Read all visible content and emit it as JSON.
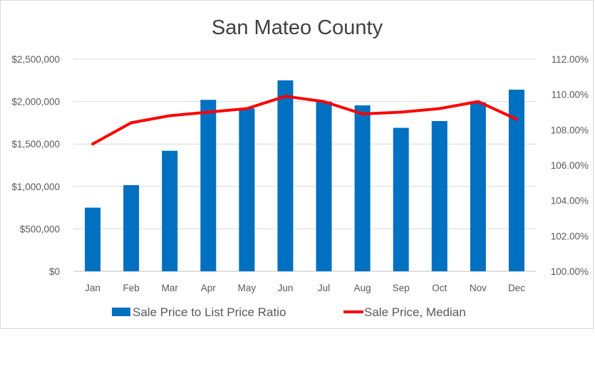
{
  "chart_data": {
    "type": "bar",
    "title": "San Mateo County",
    "categories": [
      "Jan",
      "Feb",
      "Mar",
      "Apr",
      "May",
      "Jun",
      "Jul",
      "Aug",
      "Sep",
      "Oct",
      "Nov",
      "Dec"
    ],
    "series": [
      {
        "name": "Sale Price to List Price Ratio",
        "type": "bar",
        "axis": "left",
        "color": "#0070C0",
        "values": [
          750000,
          1015000,
          1420000,
          2020000,
          1920000,
          2250000,
          2000000,
          1955000,
          1690000,
          1770000,
          1990000,
          2140000
        ]
      },
      {
        "name": "Sale Price, Median",
        "type": "line",
        "axis": "right",
        "color": "#FF0000",
        "values": [
          1.072,
          1.084,
          1.088,
          1.09,
          1.092,
          1.099,
          1.096,
          1.089,
          1.09,
          1.092,
          1.096,
          1.086
        ]
      }
    ],
    "y_left": {
      "lim": [
        0,
        2500000
      ],
      "ticks": [
        0,
        500000,
        1000000,
        1500000,
        2000000,
        2500000
      ],
      "tick_labels": [
        "$0",
        "$500,000",
        "$1,000,000",
        "$1,500,000",
        "$2,000,000",
        "$2,500,000"
      ]
    },
    "y_right": {
      "lim": [
        1.0,
        1.12
      ],
      "ticks": [
        1.0,
        1.02,
        1.04,
        1.06,
        1.08,
        1.1,
        1.12
      ],
      "tick_labels": [
        "100.00%",
        "102.00%",
        "104.00%",
        "106.00%",
        "108.00%",
        "110.00%",
        "112.00%"
      ]
    },
    "grid": true,
    "legend_position": "bottom",
    "colors": {
      "gridline": "#d9d9d9",
      "axis": "#bfbfbf"
    }
  }
}
